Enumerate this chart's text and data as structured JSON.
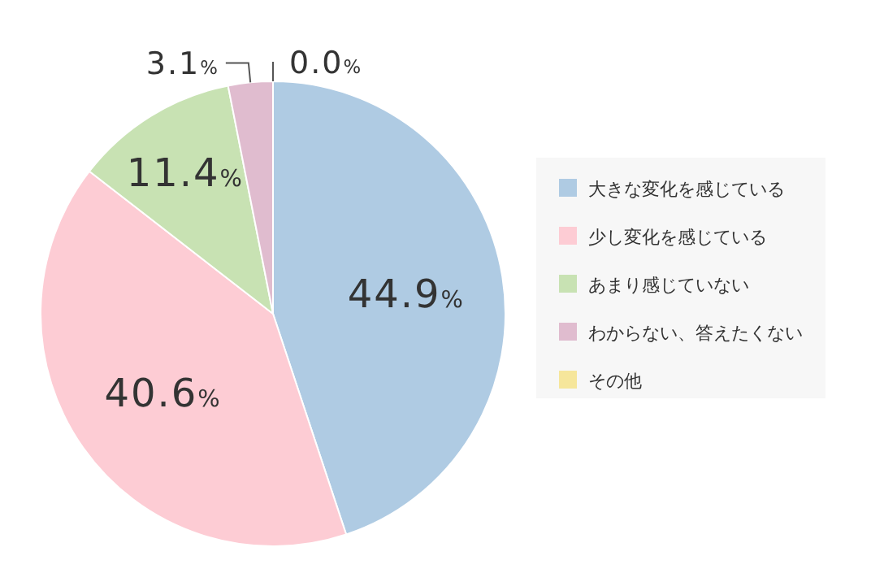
{
  "chart_data": {
    "type": "pie",
    "categories": [
      "大きな変化を感じている",
      "少し変化を感じている",
      "あまり感じていない",
      "わからない、答えたくない",
      "その他"
    ],
    "values": [
      44.9,
      40.6,
      11.4,
      3.1,
      0.0
    ],
    "value_labels": [
      "44.9%",
      "40.6%",
      "11.4%",
      "3.1%",
      "0.0%"
    ],
    "colors": [
      "#afcbe3",
      "#fdccd4",
      "#c8e2b3",
      "#e0bccf",
      "#f6e69b"
    ],
    "legend": "right"
  }
}
